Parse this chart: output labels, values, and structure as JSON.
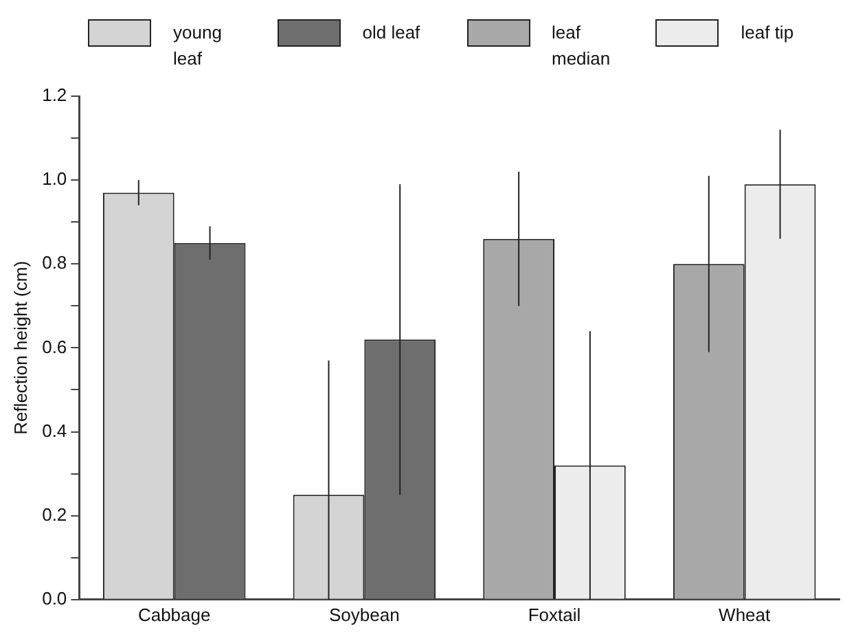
{
  "chart_data": {
    "type": "bar",
    "ylabel": "Reflection height (cm)",
    "categories": [
      "Cabbage",
      "Soybean",
      "Foxtail",
      "Wheat"
    ],
    "series": [
      {
        "name": "young leaf",
        "color": "#d4d4d4",
        "values": [
          0.97,
          0.25,
          null,
          null
        ],
        "errors": [
          0.03,
          [
            0,
            0.57
          ],
          null,
          null
        ]
      },
      {
        "name": "old leaf",
        "color": "#6e6e6e",
        "values": [
          0.85,
          0.62,
          null,
          null
        ],
        "errors": [
          0.04,
          [
            0.25,
            0.99
          ],
          null,
          null
        ]
      },
      {
        "name": "leaf median",
        "color": "#a8a8a8",
        "values": [
          null,
          null,
          0.86,
          0.8
        ],
        "errors": [
          null,
          null,
          0.16,
          0.21
        ]
      },
      {
        "name": "leaf tip",
        "color": "#ececec",
        "values": [
          null,
          null,
          0.32,
          0.99
        ],
        "errors": [
          null,
          null,
          0.32,
          0.13
        ]
      }
    ],
    "ylim": [
      0,
      1.2
    ],
    "yticks": [
      {
        "value": 0,
        "label": "0.0"
      },
      {
        "value": 0.1,
        "label": null
      },
      0.2,
      {
        "value": 0.3,
        "label": null
      },
      0.4,
      {
        "value": 0.5,
        "label": null
      },
      0.6,
      {
        "value": 0.7,
        "label": null
      },
      0.8,
      {
        "value": 0.9,
        "label": null
      },
      {
        "value": 1,
        "label": "1.0"
      },
      {
        "value": 1.1,
        "label": null
      },
      1.2
    ],
    "grid": false,
    "legend": "top"
  }
}
